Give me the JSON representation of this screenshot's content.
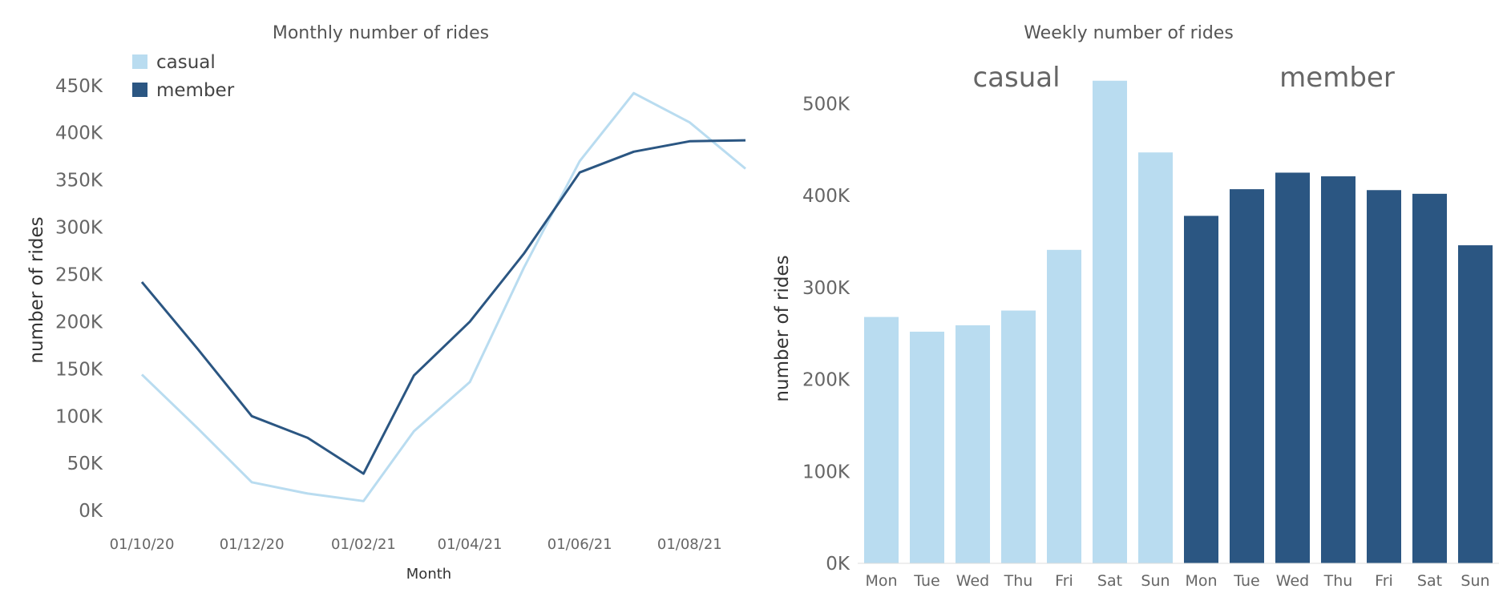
{
  "colors": {
    "casual": "#b9dcf0",
    "member": "#2b5682"
  },
  "chart_data": [
    {
      "type": "line",
      "title": "Monthly number of rides",
      "xlabel": "Month",
      "ylabel": "number of rides",
      "x": [
        "2020-10-01",
        "2020-11-01",
        "2020-12-01",
        "2021-01-01",
        "2021-02-01",
        "2021-03-01",
        "2021-04-01",
        "2021-05-01",
        "2021-06-01",
        "2021-07-01",
        "2021-08-01",
        "2021-09-01"
      ],
      "x_tick_labels": [
        "01/10/20",
        "01/12/20",
        "01/02/21",
        "01/04/21",
        "01/06/21",
        "01/08/21"
      ],
      "y_tick_labels": [
        "0K",
        "50K",
        "100K",
        "150K",
        "200K",
        "250K",
        "300K",
        "350K",
        "400K",
        "450K"
      ],
      "y_ticks": [
        0,
        50000,
        100000,
        150000,
        200000,
        250000,
        300000,
        350000,
        400000,
        450000
      ],
      "ylim": [
        -5000,
        460000
      ],
      "legend": {
        "placement": "top-left",
        "entries": [
          "casual",
          "member"
        ]
      },
      "grid": false,
      "series": [
        {
          "name": "casual",
          "values": [
            144000,
            87000,
            30000,
            18000,
            10000,
            84000,
            136000,
            257000,
            370000,
            442000,
            411000,
            362000
          ]
        },
        {
          "name": "member",
          "values": [
            242000,
            171000,
            100000,
            77000,
            39000,
            143000,
            200000,
            272000,
            358000,
            380000,
            391000,
            392000
          ]
        }
      ]
    },
    {
      "type": "bar",
      "title": "Weekly number of rides",
      "ylabel": "number of rides",
      "groups": [
        "casual",
        "member"
      ],
      "categories": [
        "Mon",
        "Tue",
        "Wed",
        "Thu",
        "Fri",
        "Sat",
        "Sun"
      ],
      "y_tick_labels": [
        "0K",
        "100K",
        "200K",
        "300K",
        "400K",
        "500K"
      ],
      "y_ticks": [
        0,
        100000,
        200000,
        300000,
        400000,
        500000
      ],
      "ylim": [
        0,
        530000
      ],
      "grid": false,
      "series": [
        {
          "name": "casual",
          "values": [
            268000,
            252000,
            259000,
            275000,
            341000,
            525000,
            447000
          ]
        },
        {
          "name": "member",
          "values": [
            378000,
            407000,
            425000,
            421000,
            406000,
            402000,
            346000
          ]
        }
      ]
    }
  ]
}
